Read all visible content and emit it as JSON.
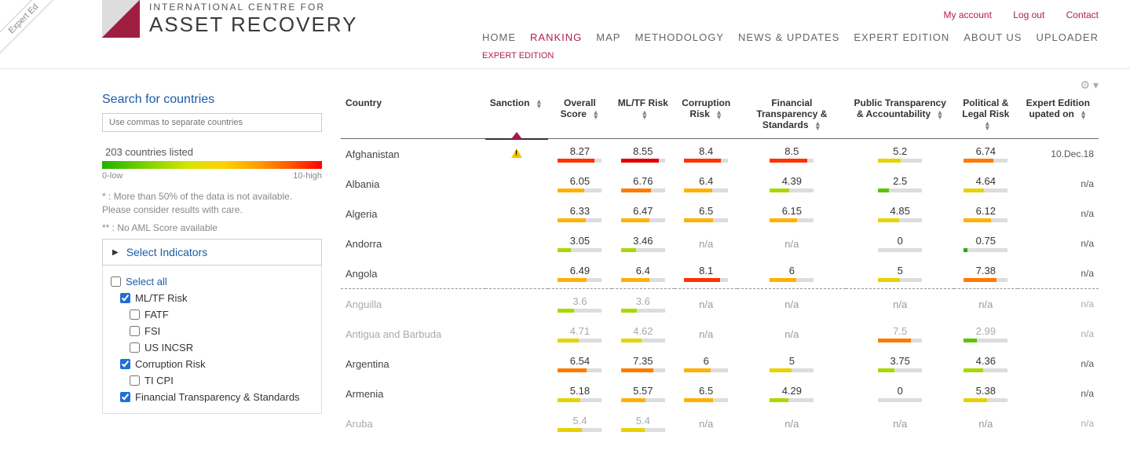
{
  "ribbon": "Expert Ed",
  "logo": {
    "sub": "INTERNATIONAL CENTRE FOR",
    "main": "ASSET RECOVERY"
  },
  "userLinks": [
    "My account",
    "Log out",
    "Contact"
  ],
  "nav": [
    "HOME",
    "RANKING",
    "MAP",
    "METHODOLOGY",
    "NEWS & UPDATES",
    "EXPERT EDITION",
    "ABOUT US",
    "UPLOADER"
  ],
  "navActive": "RANKING",
  "subnav": "EXPERT EDITION",
  "sidebar": {
    "searchTitle": "Search for countries",
    "placeholder": "Use commas to separate countries",
    "count": "203 countries listed",
    "scaleLow": "0-low",
    "scaleHigh": "10-high",
    "foot1": "* : More than 50% of the data is not available. Please consider results with care.",
    "foot2": "** : No AML Score available",
    "selectIndicators": "Select Indicators",
    "indicators": {
      "selectAll": "Select all",
      "mltf": "ML/TF Risk",
      "fatf": "FATF",
      "fsi": "FSI",
      "usincsr": "US INCSR",
      "corruption": "Corruption Risk",
      "ticpi": "TI CPI",
      "fintrans": "Financial Transparency & Standards"
    }
  },
  "columns": [
    "Country",
    "Sanction",
    "Overall Score",
    "ML/TF Risk",
    "Corruption Risk",
    "Financial Transparency & Standards",
    "Public Transparency & Accountability",
    "Political & Legal Risk",
    "Expert Edition upated on"
  ],
  "rows": [
    {
      "name": "Afghanistan",
      "sanction": true,
      "scores": [
        8.27,
        8.55,
        8.4,
        8.5,
        5.2,
        6.74
      ],
      "date": "10.Dec.18",
      "muted": false
    },
    {
      "name": "Albania",
      "sanction": false,
      "scores": [
        6.05,
        6.76,
        6.4,
        4.39,
        2.5,
        4.64
      ],
      "date": "n/a",
      "muted": false
    },
    {
      "name": "Algeria",
      "sanction": false,
      "scores": [
        6.33,
        6.47,
        6.5,
        6.15,
        4.85,
        6.12
      ],
      "date": "n/a",
      "muted": false
    },
    {
      "name": "Andorra",
      "sanction": false,
      "scores": [
        3.05,
        3.46,
        null,
        null,
        0,
        0.75
      ],
      "date": "n/a",
      "muted": false
    },
    {
      "name": "Angola",
      "sanction": false,
      "scores": [
        6.49,
        6.4,
        8.1,
        6,
        5,
        7.38
      ],
      "date": "n/a",
      "muted": false
    },
    {
      "name": "Anguilla",
      "sanction": false,
      "scores": [
        3.6,
        3.6,
        null,
        null,
        null,
        null
      ],
      "date": "n/a",
      "muted": true,
      "dashed": true
    },
    {
      "name": "Antigua and Barbuda",
      "sanction": false,
      "scores": [
        4.71,
        4.62,
        null,
        null,
        7.5,
        2.99
      ],
      "date": "n/a",
      "muted": true
    },
    {
      "name": "Argentina",
      "sanction": false,
      "scores": [
        6.54,
        7.35,
        6,
        5,
        3.75,
        4.36
      ],
      "date": "n/a",
      "muted": false
    },
    {
      "name": "Armenia",
      "sanction": false,
      "scores": [
        5.18,
        5.57,
        6.5,
        4.29,
        0,
        5.38
      ],
      "date": "n/a",
      "muted": false
    },
    {
      "name": "Aruba",
      "sanction": false,
      "scores": [
        5.4,
        5.4,
        null,
        null,
        null,
        null
      ],
      "date": "n/a",
      "muted": true
    }
  ],
  "colors": {
    "stops": [
      {
        "max": 1.5,
        "c": "#1eb200"
      },
      {
        "max": 3.0,
        "c": "#5cc400"
      },
      {
        "max": 4.5,
        "c": "#a8d800"
      },
      {
        "max": 5.5,
        "c": "#e6d200"
      },
      {
        "max": 6.5,
        "c": "#ffb000"
      },
      {
        "max": 7.5,
        "c": "#ff7a00"
      },
      {
        "max": 8.5,
        "c": "#ff3100"
      },
      {
        "max": 11,
        "c": "#e00000"
      }
    ]
  }
}
